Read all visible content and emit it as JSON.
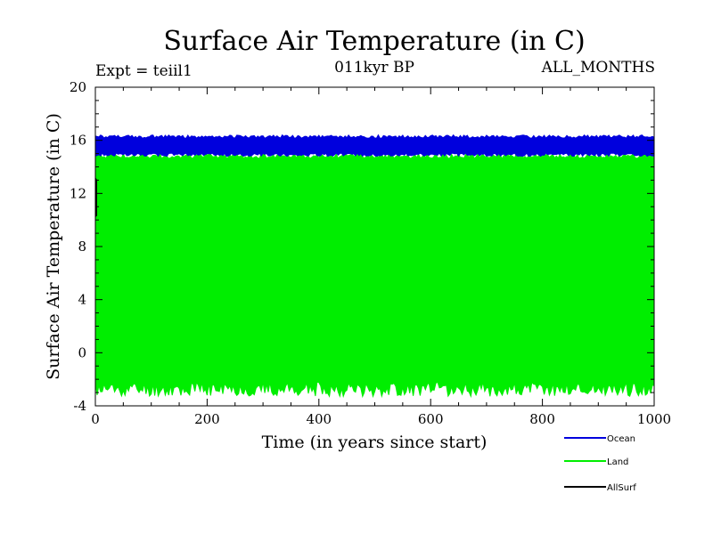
{
  "chart_data": {
    "type": "line",
    "title": "Surface Air Temperature (in C)",
    "subtitle": "011kyr BP",
    "experiment": "Expt = teiil1",
    "months": "ALL_MONTHS",
    "xlabel": "Time (in years since start)",
    "ylabel": "Surface Air Temperature (in C)",
    "xlim": [
      0,
      1000
    ],
    "ylim": [
      -4,
      20
    ],
    "xticks": [
      0,
      200,
      400,
      600,
      800,
      1000
    ],
    "yticks": [
      -4,
      0,
      4,
      8,
      12,
      16,
      20
    ],
    "grid": false,
    "legend_position": "bottom-right",
    "series": [
      {
        "name": "Ocean",
        "color": "#0000dd",
        "band_min": 14.8,
        "band_max": 16.4
      },
      {
        "name": "Land",
        "color": "#00ee00",
        "band_min": -3.3,
        "band_max": 15.0
      },
      {
        "name": "AllSurf",
        "color": "#000000",
        "band_min": 10.0,
        "band_max": 13.5
      }
    ]
  }
}
